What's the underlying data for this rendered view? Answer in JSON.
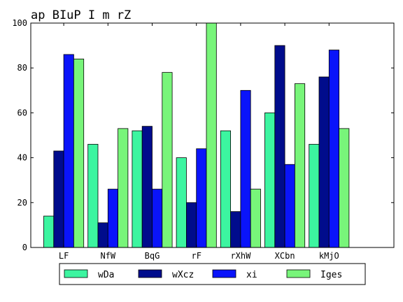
{
  "chart_data": {
    "type": "bar",
    "title": "ap BIuP I m rZ",
    "xlabel": "",
    "ylabel": "",
    "ylim": [
      0,
      100
    ],
    "yticks": [
      0,
      20,
      40,
      60,
      80,
      100
    ],
    "grid": false,
    "legend_position": "bottom",
    "categories": [
      "LF",
      "NfW",
      "BqG",
      "rF",
      "rXhW",
      "XCbn",
      "kMjO"
    ],
    "series": [
      {
        "name": "wDa",
        "color": "#3cf5a0",
        "values": [
          14,
          46,
          52,
          40,
          52,
          60,
          46
        ]
      },
      {
        "name": "wXcz",
        "color": "#000c8c",
        "values": [
          43,
          11,
          54,
          20,
          16,
          90,
          76
        ]
      },
      {
        "name": "xi",
        "color": "#0a14fa",
        "values": [
          86,
          26,
          26,
          44,
          70,
          37,
          88
        ]
      },
      {
        "name": "Iges",
        "color": "#78f57a",
        "values": [
          84,
          53,
          78,
          100,
          26,
          73,
          53
        ]
      }
    ]
  }
}
